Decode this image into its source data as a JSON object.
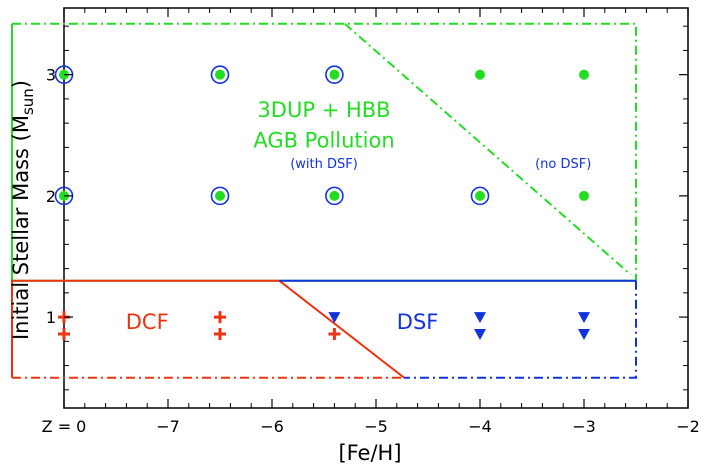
{
  "chart_data": {
    "type": "scatter",
    "title": "",
    "xlabel": "[Fe/H]",
    "ylabel_main": "Initial Stellar Mass (M",
    "ylabel_sub": "sun",
    "ylabel_close": ")",
    "xlim": [
      -8.0,
      -2.0
    ],
    "ylim": [
      0.25,
      3.55
    ],
    "grid": false,
    "legend": "none",
    "x_ticks": [
      {
        "value": -8.0,
        "label": "Z = 0"
      },
      {
        "value": -7,
        "label": "−7"
      },
      {
        "value": -6,
        "label": "−6"
      },
      {
        "value": -5,
        "label": "−5"
      },
      {
        "value": -4,
        "label": "−4"
      },
      {
        "value": -3,
        "label": "−3"
      },
      {
        "value": -2,
        "label": "−2"
      }
    ],
    "y_ticks": [
      {
        "value": 1,
        "label": "1"
      },
      {
        "value": 2,
        "label": "2"
      },
      {
        "value": 3,
        "label": "3"
      }
    ],
    "colors": {
      "agb": "#22dd22",
      "dcf": "#ee3311",
      "dsf": "#1133dd",
      "ring": "#1133dd"
    },
    "series": [
      {
        "marker": "dot-ring",
        "color": "agb",
        "x": [
          -8.0,
          -6.5,
          -5.4,
          -8.0,
          -6.5,
          -5.4,
          -4.0
        ],
        "y": [
          3,
          3,
          3,
          2,
          2,
          2,
          2
        ]
      },
      {
        "marker": "dot",
        "color": "agb",
        "x": [
          -4.0,
          -3.0,
          -3.0
        ],
        "y": [
          3,
          3,
          2
        ]
      },
      {
        "marker": "plus",
        "color": "dcf",
        "x": [
          -8.0,
          -8.0,
          -6.5,
          -6.5,
          -5.4
        ],
        "y": [
          1.0,
          0.86,
          1.0,
          0.86,
          0.86
        ]
      },
      {
        "marker": "triangle-down",
        "color": "dsf",
        "x": [
          -5.4,
          -4.0,
          -4.0,
          -3.0,
          -3.0
        ],
        "y": [
          1.0,
          1.0,
          0.86,
          1.0,
          0.86
        ]
      }
    ],
    "regions": [
      {
        "name": "agb",
        "color": "agb",
        "solid": [
          [
            -2.5,
            1.3
          ],
          [
            -8.5,
            1.3
          ],
          [
            -8.5,
            3.42
          ]
        ],
        "dashdot": [
          [
            [
              -8.5,
              3.42
            ],
            [
              -2.5,
              3.42
            ],
            [
              -2.5,
              1.3
            ]
          ],
          [
            [
              -5.3,
              3.42
            ],
            [
              -2.55,
              1.35
            ]
          ]
        ]
      },
      {
        "name": "dcf",
        "color": "dcf",
        "solid": [
          [
            -5.93,
            1.3
          ],
          [
            -8.5,
            1.3
          ],
          [
            -8.5,
            0.5
          ]
        ],
        "solid_2": [
          [
            -5.93,
            1.3
          ],
          [
            -4.73,
            0.5
          ]
        ],
        "dashdot": [
          [
            [
              -8.5,
              0.5
            ],
            [
              -4.73,
              0.5
            ]
          ]
        ]
      },
      {
        "name": "dsf",
        "color": "dsf",
        "solid": [
          [
            -5.93,
            1.3
          ],
          [
            -2.5,
            1.3
          ]
        ],
        "dashdot": [
          [
            [
              -2.5,
              1.3
            ],
            [
              -2.5,
              0.5
            ],
            [
              -4.73,
              0.5
            ]
          ]
        ]
      }
    ],
    "annotations": [
      {
        "text": "3DUP + HBB",
        "x": -5.5,
        "y": 2.65,
        "color": "agb",
        "size": "big"
      },
      {
        "text": "AGB Pollution",
        "x": -5.5,
        "y": 2.4,
        "color": "agb",
        "size": "big"
      },
      {
        "text": "(with DSF)",
        "x": -5.5,
        "y": 2.23,
        "color": "dsf",
        "size": "small"
      },
      {
        "text": "(no DSF)",
        "x": -3.2,
        "y": 2.23,
        "color": "dsf",
        "size": "small"
      },
      {
        "text": "DCF",
        "x": -7.2,
        "y": 0.9,
        "color": "dcf",
        "size": "big"
      },
      {
        "text": "DSF",
        "x": -4.6,
        "y": 0.9,
        "color": "dsf",
        "size": "big"
      }
    ]
  }
}
